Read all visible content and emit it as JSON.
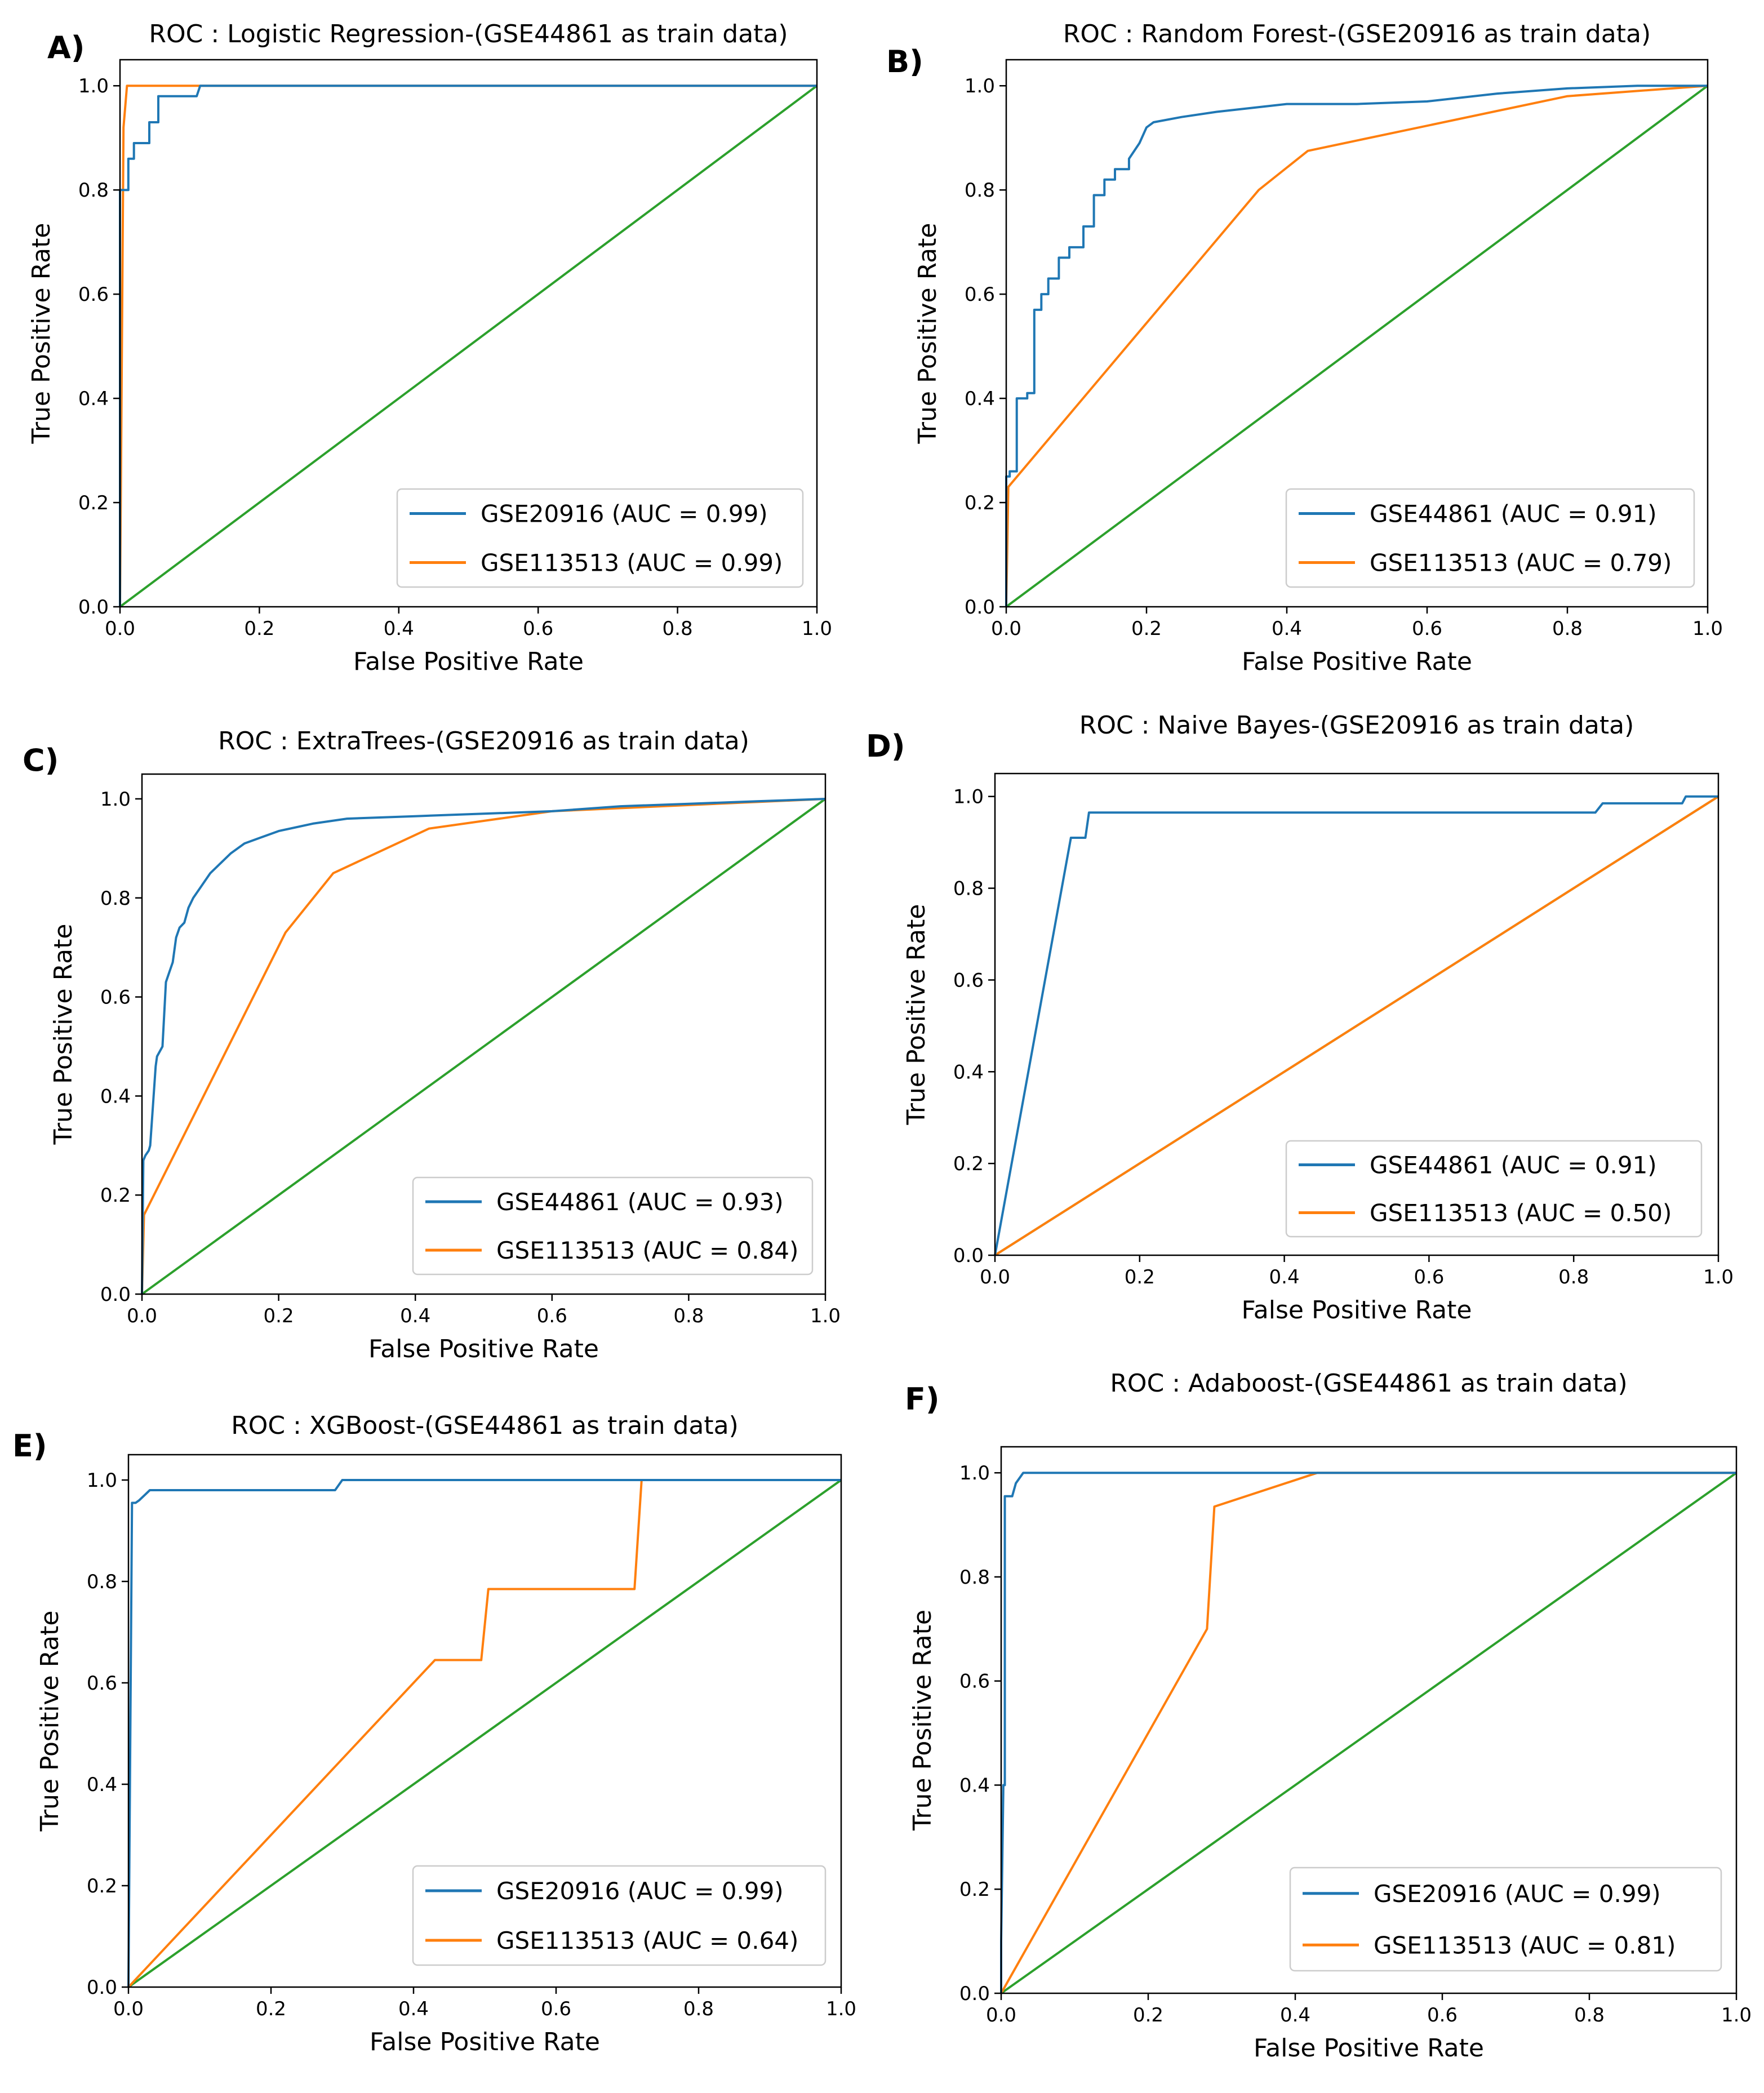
{
  "colors": {
    "series1": "#1f77b4",
    "series2": "#ff7f0e",
    "chance": "#2ca02c",
    "axes": "#000000",
    "legend_border": "#cccccc"
  },
  "chart_data": [
    {
      "panel_label": "A)",
      "type": "line",
      "title": "ROC : Logistic Regression-(GSE44861 as train data)",
      "xlabel": "False Positive Rate",
      "ylabel": "True Positive Rate",
      "xlim": [
        0,
        1
      ],
      "ylim": [
        0,
        1.0
      ],
      "xticks": [
        "0.0",
        "0.2",
        "0.4",
        "0.6",
        "0.8",
        "1.0"
      ],
      "yticks": [
        "0.0",
        "0.2",
        "0.4",
        "0.6",
        "0.8",
        "1.0"
      ],
      "legend_position": "lower-right",
      "series": [
        {
          "name": "GSE20916 (AUC = 0.99)",
          "color": "series1",
          "x": [
            0,
            0.0,
            0.012,
            0.012,
            0.02,
            0.02,
            0.03,
            0.03,
            0.042,
            0.042,
            0.055,
            0.055,
            0.08,
            0.08,
            0.1,
            0.11,
            0.115,
            0.118,
            1.0
          ],
          "y": [
            0,
            0.8,
            0.8,
            0.86,
            0.86,
            0.89,
            0.89,
            0.89,
            0.89,
            0.93,
            0.93,
            0.98,
            0.98,
            0.98,
            0.98,
            0.98,
            1.0,
            1.0,
            1.0
          ]
        },
        {
          "name": "GSE113513 (AUC = 0.99)",
          "color": "series2",
          "x": [
            0,
            0.005,
            0.01,
            1.0
          ],
          "y": [
            0,
            0.92,
            1.0,
            1.0
          ]
        },
        {
          "name": "",
          "color": "chance",
          "x": [
            0,
            1
          ],
          "y": [
            0,
            1
          ]
        }
      ]
    },
    {
      "panel_label": "B)",
      "type": "line",
      "title": "ROC : Random Forest-(GSE20916 as train data)",
      "xlabel": "False Positive Rate",
      "ylabel": "True Positive Rate",
      "xlim": [
        0,
        1
      ],
      "ylim": [
        0,
        1.0
      ],
      "xticks": [
        "0.0",
        "0.2",
        "0.4",
        "0.6",
        "0.8",
        "1.0"
      ],
      "yticks": [
        "0.0",
        "0.2",
        "0.4",
        "0.6",
        "0.8",
        "1.0"
      ],
      "legend_position": "lower-right",
      "series": [
        {
          "name": "GSE44861 (AUC = 0.91)",
          "color": "series1",
          "x": [
            0,
            0.0,
            0.005,
            0.005,
            0.015,
            0.015,
            0.03,
            0.03,
            0.04,
            0.04,
            0.05,
            0.05,
            0.06,
            0.06,
            0.075,
            0.075,
            0.09,
            0.09,
            0.11,
            0.11,
            0.125,
            0.125,
            0.14,
            0.14,
            0.155,
            0.155,
            0.175,
            0.175,
            0.19,
            0.2,
            0.21,
            0.25,
            0.3,
            0.4,
            0.5,
            0.6,
            0.7,
            0.8,
            0.9,
            1.0
          ],
          "y": [
            0,
            0.25,
            0.25,
            0.26,
            0.26,
            0.4,
            0.4,
            0.41,
            0.41,
            0.57,
            0.57,
            0.6,
            0.6,
            0.63,
            0.63,
            0.67,
            0.67,
            0.69,
            0.69,
            0.73,
            0.73,
            0.79,
            0.79,
            0.82,
            0.82,
            0.84,
            0.84,
            0.86,
            0.89,
            0.92,
            0.93,
            0.94,
            0.95,
            0.965,
            0.965,
            0.97,
            0.985,
            0.995,
            1.0,
            1.0
          ]
        },
        {
          "name": "GSE113513 (AUC = 0.79)",
          "color": "series2",
          "x": [
            0,
            0.003,
            0.36,
            0.43,
            0.8,
            1.0
          ],
          "y": [
            0,
            0.23,
            0.8,
            0.875,
            0.98,
            1.0
          ]
        },
        {
          "name": "",
          "color": "chance",
          "x": [
            0,
            1
          ],
          "y": [
            0,
            1
          ]
        }
      ]
    },
    {
      "panel_label": "C)",
      "type": "line",
      "title": "ROC : ExtraTrees-(GSE20916 as train data)",
      "xlabel": "False Positive Rate",
      "ylabel": "True Positive Rate",
      "xlim": [
        0,
        1
      ],
      "ylim": [
        0,
        1.0
      ],
      "xticks": [
        "0.0",
        "0.2",
        "0.4",
        "0.6",
        "0.8",
        "1.0"
      ],
      "yticks": [
        "0.0",
        "0.2",
        "0.4",
        "0.6",
        "0.8",
        "1.0"
      ],
      "legend_position": "lower-right",
      "series": [
        {
          "name": "GSE44861 (AUC = 0.93)",
          "color": "series1",
          "x": [
            0,
            0.002,
            0.005,
            0.01,
            0.012,
            0.02,
            0.022,
            0.03,
            0.035,
            0.04,
            0.045,
            0.05,
            0.055,
            0.062,
            0.068,
            0.075,
            0.085,
            0.1,
            0.115,
            0.13,
            0.15,
            0.17,
            0.2,
            0.25,
            0.3,
            0.4,
            0.5,
            0.6,
            0.7,
            0.8,
            0.9,
            1.0
          ],
          "y": [
            0,
            0.27,
            0.28,
            0.29,
            0.3,
            0.46,
            0.48,
            0.5,
            0.63,
            0.65,
            0.67,
            0.72,
            0.74,
            0.75,
            0.78,
            0.8,
            0.82,
            0.85,
            0.87,
            0.89,
            0.91,
            0.92,
            0.935,
            0.95,
            0.96,
            0.965,
            0.97,
            0.975,
            0.985,
            0.99,
            0.995,
            1.0
          ]
        },
        {
          "name": "GSE113513 (AUC = 0.84)",
          "color": "series2",
          "x": [
            0,
            0.003,
            0.21,
            0.28,
            0.42,
            0.6,
            1.0
          ],
          "y": [
            0,
            0.16,
            0.73,
            0.85,
            0.94,
            0.975,
            1.0
          ]
        },
        {
          "name": "",
          "color": "chance",
          "x": [
            0,
            1
          ],
          "y": [
            0,
            1
          ]
        }
      ]
    },
    {
      "panel_label": "D)",
      "type": "line",
      "title": "ROC : Naive Bayes-(GSE20916 as train data)",
      "xlabel": "False Positive Rate",
      "ylabel": "True Positive Rate",
      "xlim": [
        0,
        1
      ],
      "ylim": [
        0,
        1.0
      ],
      "xticks": [
        "0.0",
        "0.2",
        "0.4",
        "0.6",
        "0.8",
        "1.0"
      ],
      "yticks": [
        "0.0",
        "0.2",
        "0.4",
        "0.6",
        "0.8",
        "1.0"
      ],
      "legend_position": "lower-right",
      "series": [
        {
          "name": "GSE44861 (AUC = 0.91)",
          "color": "series1",
          "x": [
            0,
            0.105,
            0.105,
            0.125,
            0.13,
            0.83,
            0.84,
            0.95,
            0.955,
            1.0
          ],
          "y": [
            0,
            0.91,
            0.91,
            0.91,
            0.965,
            0.965,
            0.985,
            0.985,
            1.0,
            1.0
          ]
        },
        {
          "name": "GSE113513 (AUC = 0.50)",
          "color": "series2",
          "x": [
            0,
            1
          ],
          "y": [
            0,
            1
          ]
        },
        {
          "name": "",
          "color": "chance",
          "x": [
            0,
            1
          ],
          "y": [
            0,
            1
          ]
        }
      ]
    },
    {
      "panel_label": "E)",
      "type": "line",
      "title": "ROC : XGBoost-(GSE44861 as train data)",
      "xlabel": "False Positive Rate",
      "ylabel": "True Positive Rate",
      "xlim": [
        0,
        1
      ],
      "ylim": [
        0,
        1.0
      ],
      "xticks": [
        "0.0",
        "0.2",
        "0.4",
        "0.6",
        "0.8",
        "1.0"
      ],
      "yticks": [
        "0.0",
        "0.2",
        "0.4",
        "0.6",
        "0.8",
        "1.0"
      ],
      "legend_position": "lower-right",
      "series": [
        {
          "name": "GSE20916 (AUC = 0.99)",
          "color": "series1",
          "x": [
            0,
            0.005,
            0.01,
            0.015,
            0.03,
            0.29,
            0.3,
            1.0
          ],
          "y": [
            0,
            0.955,
            0.955,
            0.96,
            0.98,
            0.98,
            1.0,
            1.0
          ]
        },
        {
          "name": "GSE113513 (AUC = 0.64)",
          "color": "series2",
          "x": [
            0,
            0.43,
            0.495,
            0.505,
            0.71,
            0.72,
            1.0
          ],
          "y": [
            0,
            0.645,
            0.645,
            0.785,
            0.785,
            1.0,
            1.0
          ]
        },
        {
          "name": "",
          "color": "chance",
          "x": [
            0,
            1
          ],
          "y": [
            0,
            1
          ]
        }
      ]
    },
    {
      "panel_label": "F)",
      "type": "line",
      "title": "ROC : Adaboost-(GSE44861 as train data)",
      "xlabel": "False Positive Rate",
      "ylabel": "True Positive Rate",
      "xlim": [
        0,
        1
      ],
      "ylim": [
        0,
        1.0
      ],
      "xticks": [
        "0.0",
        "0.2",
        "0.4",
        "0.6",
        "0.8",
        "1.0"
      ],
      "yticks": [
        "0.0",
        "0.2",
        "0.4",
        "0.6",
        "0.8",
        "1.0"
      ],
      "legend_position": "lower-right",
      "series": [
        {
          "name": "GSE20916 (AUC = 0.99)",
          "color": "series1",
          "x": [
            0,
            0.0,
            0.003,
            0.005,
            0.005,
            0.015,
            0.02,
            0.03,
            1.0
          ],
          "y": [
            0,
            0.1,
            0.4,
            0.4,
            0.955,
            0.955,
            0.98,
            1.0,
            1.0
          ]
        },
        {
          "name": "GSE113513 (AUC = 0.81)",
          "color": "series2",
          "x": [
            0,
            0.28,
            0.29,
            0.43,
            1.0
          ],
          "y": [
            0,
            0.7,
            0.935,
            1.0,
            1.0
          ]
        },
        {
          "name": "",
          "color": "chance",
          "x": [
            0,
            1
          ],
          "y": [
            0,
            1
          ]
        }
      ]
    }
  ]
}
